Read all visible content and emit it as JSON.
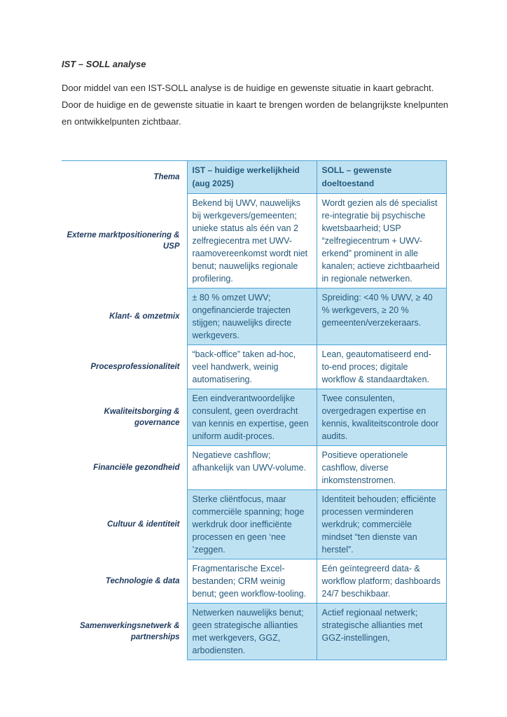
{
  "page": {
    "title": "IST – SOLL analyse",
    "intro_lines": [
      "Door middel van een IST-SOLL analyse is de huidige en gewenste situatie in kaart gebracht.",
      "Door de huidige en de gewenste situatie in kaart te brengen worden de belangrijkste knelpunten",
      "en ontwikkelpunten zichtbaar."
    ]
  },
  "colors": {
    "accent_fill": "#bfe2f3",
    "border_blue": "#4ba3d6",
    "cell_text": "#23587a",
    "thema_text": "#1f3a5e",
    "body_text": "#2e2e2e"
  },
  "table": {
    "columns": {
      "thema": "Thema",
      "ist_lines": [
        "IST – huidige werkelijkheid",
        "(aug 2025)"
      ],
      "soll_lines": [
        "SOLL – gewenste",
        "doeltoestand"
      ]
    },
    "rows": [
      {
        "thema": "Externe marktpositionering & USP",
        "ist": "Bekend bij UWV, nauwelijks bij werkgevers/gemeenten; unieke status als één van 2 zelfregiecentra met UWV-raamovereenkomst wordt niet benut; nauwelijks regionale profilering.",
        "soll": "Wordt gezien als dé specialist re-integratie bij psychische kwetsbaarheid; USP “zelfregiecentrum + UWV-erkend” prominent in alle kanalen; actieve zichtbaarheid in regionale netwerken."
      },
      {
        "thema": "Klant- & omzetmix",
        "ist": "± 80 % omzet UWV; ongefinancierde trajecten stijgen; nauwelijks directe werkgevers.",
        "soll": "Spreiding: <40 % UWV, ≥ 40 % werkgevers, ≥ 20 % gemeenten/verzekeraars."
      },
      {
        "thema": "Procesprofessionaliteit",
        "ist": "“back-office” taken ad-hoc, veel handwerk, weinig automatisering.",
        "soll": "Lean, geautomatiseerd end-to-end proces; digitale workflow & standaardtaken."
      },
      {
        "thema": "Kwaliteitsborging & governance",
        "ist": "Een eindverantwoordelijke consulent, geen overdracht van kennis en expertise, geen uniform audit-proces.",
        "soll": "Twee consulenten, overgedragen expertise en kennis, kwaliteitscontrole door audits."
      },
      {
        "thema": "Financiële gezondheid",
        "ist": "Negatieve cashflow; afhankelijk van UWV-volume.",
        "soll": "Positieve operationele cashflow, diverse inkomstenstromen."
      },
      {
        "thema": "Cultuur & identiteit",
        "ist": "Sterke cliëntfocus, maar commerciële spanning; hoge werkdruk door inefficiënte processen en geen ‘nee ’zeggen.",
        "soll": "Identiteit behouden; efficiënte processen verminderen werkdruk; commerciële mindset “ten dienste van herstel”."
      },
      {
        "thema": "Technologie & data",
        "ist": "Fragmentarische Excel-bestanden; CRM weinig benut; geen workflow-tooling.",
        "soll": "Eén geïntegreerd data- & workflow platform; dashboards 24/7 beschikbaar."
      },
      {
        "thema": "Samenwerkingsnetwerk & partnerships",
        "ist": "Netwerken nauwelijks benut; geen strategische allianties met werkgevers, GGZ, arbodiensten.",
        "soll": "Actief regionaal netwerk; strategische allianties met GGZ-instellingen,"
      }
    ]
  }
}
